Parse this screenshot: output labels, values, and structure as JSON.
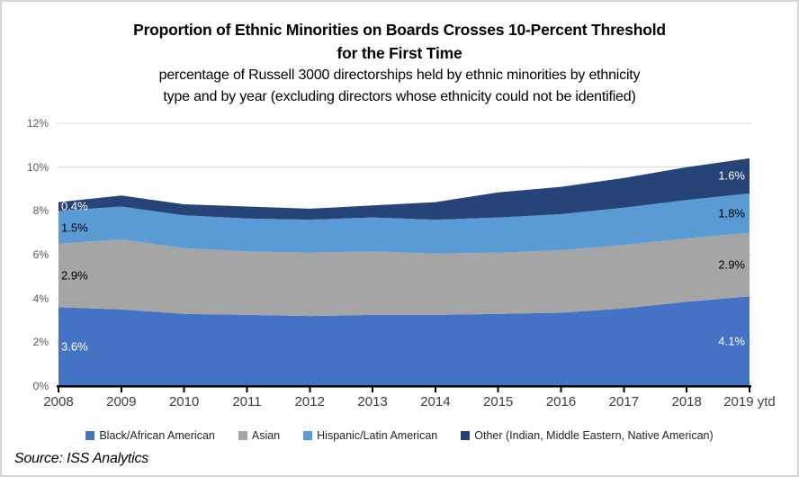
{
  "header": {
    "title_line1": "Proportion of Ethnic Minorities on Boards Crosses 10-Percent Threshold",
    "title_line2": "for the First Time",
    "subtitle_line1": "percentage of Russell 3000 directorships held by ethnic minorities by ethnicity",
    "subtitle_line2": "type and by year (excluding directors whose ethnicity could not be identified)"
  },
  "source": "Source: ISS Analytics",
  "chart_data": {
    "type": "area",
    "stacked": true,
    "title": "Proportion of Ethnic Minorities on Boards Crosses 10-Percent Threshold for the First Time",
    "x": [
      "2008",
      "2009",
      "2010",
      "2011",
      "2012",
      "2013",
      "2014",
      "2015",
      "2016",
      "2017",
      "2018",
      "2019 ytd"
    ],
    "series": [
      {
        "name": "Black/African American",
        "color": "#4472C4",
        "values": [
          3.6,
          3.5,
          3.3,
          3.25,
          3.2,
          3.25,
          3.25,
          3.3,
          3.35,
          3.55,
          3.85,
          4.1
        ],
        "first_label": "3.6%",
        "last_label": "4.1%",
        "label_text_color": "#FFFFFF"
      },
      {
        "name": "Asian",
        "color": "#A5A5A5",
        "values": [
          2.9,
          3.2,
          3.0,
          2.9,
          2.9,
          2.9,
          2.8,
          2.8,
          2.85,
          2.9,
          2.9,
          2.9
        ],
        "first_label": "2.9%",
        "last_label": "2.9%",
        "label_text_color": "#000000"
      },
      {
        "name": "Hispanic/Latin American",
        "color": "#5B9BD5",
        "values": [
          1.5,
          1.5,
          1.5,
          1.5,
          1.5,
          1.55,
          1.55,
          1.6,
          1.65,
          1.7,
          1.75,
          1.8
        ],
        "first_label": "1.5%",
        "last_label": "1.8%",
        "label_text_color": "#000000"
      },
      {
        "name": "Other (Indian, Middle Eastern, Native American)",
        "color": "#264478",
        "values": [
          0.4,
          0.5,
          0.5,
          0.55,
          0.5,
          0.55,
          0.8,
          1.15,
          1.25,
          1.35,
          1.5,
          1.6
        ],
        "first_label": "0.4%",
        "last_label": "1.6%",
        "label_text_color": "#FFFFFF"
      }
    ],
    "yticks": [
      "0%",
      "2%",
      "4%",
      "6%",
      "8%",
      "10%",
      "12%"
    ],
    "ylim": [
      0,
      12
    ],
    "grid": true,
    "grid_color": "#D9D9D9",
    "axis_color": "#000000",
    "y_label_color": "#595959",
    "x_label_color": "#404040",
    "legend_position": "bottom"
  }
}
